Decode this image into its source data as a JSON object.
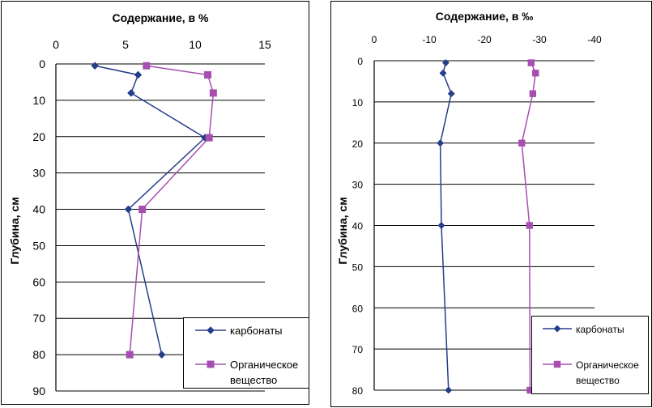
{
  "chart_data": [
    {
      "type": "line",
      "title": "Содержание, в %",
      "xlabel": "Содержание, в %",
      "ylabel": "Глубина, см",
      "xlim": [
        0,
        15
      ],
      "ylim": [
        0,
        90
      ],
      "x_ticks": [
        "0",
        "5",
        "10",
        "15"
      ],
      "y_ticks": [
        "0",
        "10",
        "20",
        "30",
        "40",
        "50",
        "60",
        "70",
        "80",
        "90"
      ],
      "series": [
        {
          "name": "карбонаты",
          "color": "#253E8A",
          "marker": "diamond",
          "points": [
            [
              2.8,
              0.5
            ],
            [
              5.9,
              3
            ],
            [
              5.4,
              8
            ],
            [
              10.7,
              20.3
            ],
            [
              5.2,
              40
            ],
            [
              7.6,
              80
            ]
          ]
        },
        {
          "name": "Органическое вещество",
          "color": "#A64FB0",
          "marker": "square",
          "points": [
            [
              6.5,
              0.5
            ],
            [
              10.9,
              3
            ],
            [
              11.3,
              8
            ],
            [
              11.0,
              20.3
            ],
            [
              6.2,
              40
            ],
            [
              5.3,
              80
            ]
          ]
        }
      ],
      "legend": [
        "карбонаты",
        "Органическое вещество"
      ]
    },
    {
      "type": "line",
      "title": "Содержание, в ‰",
      "xlabel": "Содержание, в ‰",
      "ylabel": "Глубина, см",
      "xlim": [
        0,
        -40
      ],
      "ylim": [
        0,
        80
      ],
      "x_ticks": [
        "0",
        "-10",
        "-20",
        "-30",
        "-40"
      ],
      "y_ticks": [
        "0",
        "10",
        "20",
        "30",
        "40",
        "50",
        "60",
        "70",
        "80"
      ],
      "series": [
        {
          "name": "карбонаты",
          "color": "#253E8A",
          "marker": "diamond",
          "points": [
            [
              -13,
              0.5
            ],
            [
              -12.5,
              3
            ],
            [
              -14,
              8
            ],
            [
              -12,
              20
            ],
            [
              -12.2,
              40
            ],
            [
              -13.5,
              80
            ]
          ]
        },
        {
          "name": "Органическое вещество",
          "color": "#A64FB0",
          "marker": "square",
          "points": [
            [
              -28.5,
              0.5
            ],
            [
              -29.3,
              3
            ],
            [
              -28.8,
              8
            ],
            [
              -26.8,
              20
            ],
            [
              -28.2,
              40
            ],
            [
              -28.3,
              80
            ]
          ]
        }
      ],
      "legend": [
        "карбонаты",
        "Органическое вещество"
      ]
    }
  ]
}
